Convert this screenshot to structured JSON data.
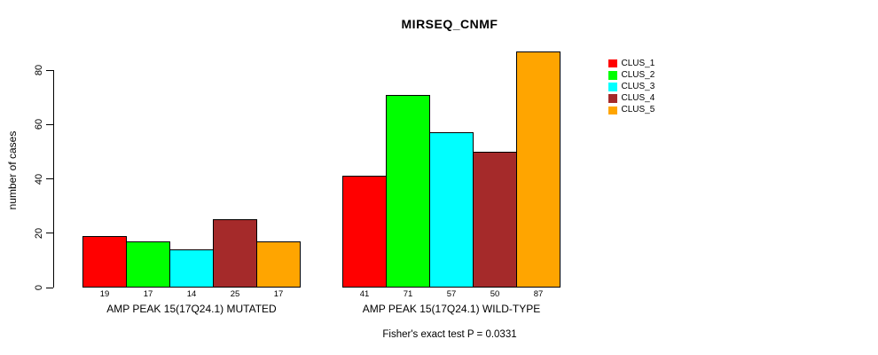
{
  "chart_data": {
    "type": "bar",
    "title": "MIRSEQ_CNMF",
    "ylabel": "number of cases",
    "xlabel": "",
    "yticks": [
      0,
      20,
      40,
      60,
      80
    ],
    "ylim": [
      0,
      87
    ],
    "grid": false,
    "legend_position": "right",
    "categories": [
      "AMP PEAK 15(17Q24.1) MUTATED",
      "AMP PEAK 15(17Q24.1) WILD-TYPE"
    ],
    "series": [
      {
        "name": "CLUS_1",
        "color": "#FF0000",
        "values": [
          19,
          41
        ]
      },
      {
        "name": "CLUS_2",
        "color": "#00FF00",
        "values": [
          17,
          71
        ]
      },
      {
        "name": "CLUS_3",
        "color": "#00FFFF",
        "values": [
          14,
          57
        ]
      },
      {
        "name": "CLUS_4",
        "color": "#A52A2A",
        "values": [
          25,
          50
        ]
      },
      {
        "name": "CLUS_5",
        "color": "#FFA500",
        "values": [
          17,
          87
        ]
      }
    ],
    "bar_value_labels": [
      [
        19,
        17,
        14,
        25,
        17
      ],
      [
        41,
        71,
        57,
        50,
        87
      ]
    ],
    "annotation": "Fisher's exact test P = 0.0331"
  }
}
